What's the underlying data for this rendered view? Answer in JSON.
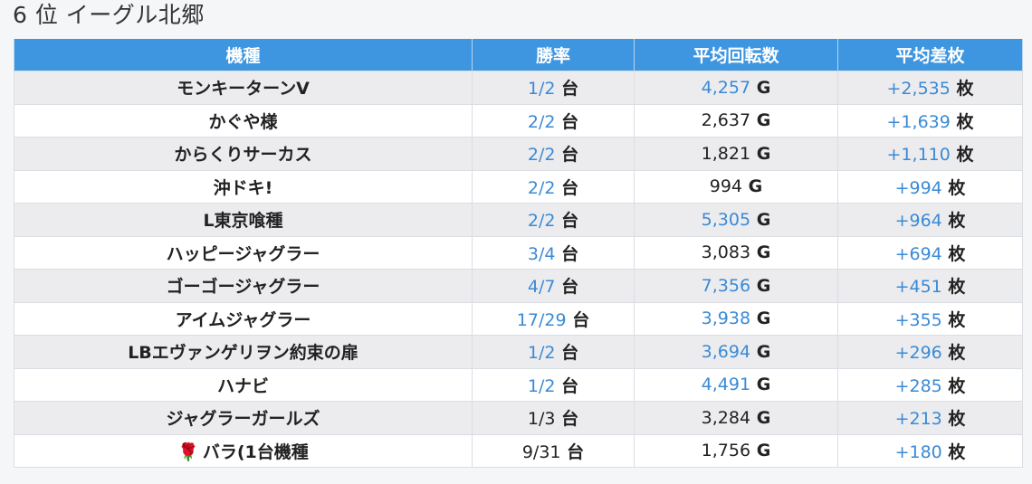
{
  "page": {
    "title": "6 位 イーグル北郷"
  },
  "table": {
    "headers": {
      "model": "機種",
      "win_rate": "勝率",
      "avg_rotation": "平均回転数",
      "avg_diff": "平均差枚"
    },
    "units": {
      "machines": "台",
      "games": "G",
      "medals": "枚"
    },
    "colors": {
      "header_bg": "#3f96e0",
      "link": "#3a8ad6",
      "stripe": "#ececef"
    },
    "rows": [
      {
        "model": "モンキーターンV",
        "win_rate": "1/2",
        "win_link": true,
        "rotation": "4,257",
        "rot_link": true,
        "diff": "+2,535",
        "diff_link": true
      },
      {
        "model": "かぐや様",
        "win_rate": "2/2",
        "win_link": true,
        "rotation": "2,637",
        "rot_link": false,
        "diff": "+1,639",
        "diff_link": true
      },
      {
        "model": "からくりサーカス",
        "win_rate": "2/2",
        "win_link": true,
        "rotation": "1,821",
        "rot_link": false,
        "diff": "+1,110",
        "diff_link": true
      },
      {
        "model": "沖ドキ!",
        "win_rate": "2/2",
        "win_link": true,
        "rotation": "994",
        "rot_link": false,
        "diff": "+994",
        "diff_link": true
      },
      {
        "model": "L東京喰種",
        "win_rate": "2/2",
        "win_link": true,
        "rotation": "5,305",
        "rot_link": true,
        "diff": "+964",
        "diff_link": true
      },
      {
        "model": "ハッピージャグラー",
        "win_rate": "3/4",
        "win_link": true,
        "rotation": "3,083",
        "rot_link": false,
        "diff": "+694",
        "diff_link": true
      },
      {
        "model": "ゴーゴージャグラー",
        "win_rate": "4/7",
        "win_link": true,
        "rotation": "7,356",
        "rot_link": true,
        "diff": "+451",
        "diff_link": true
      },
      {
        "model": "アイムジャグラー",
        "win_rate": "17/29",
        "win_link": true,
        "rotation": "3,938",
        "rot_link": true,
        "diff": "+355",
        "diff_link": true
      },
      {
        "model": "LBエヴァンゲリヲン約束の扉",
        "win_rate": "1/2",
        "win_link": true,
        "rotation": "3,694",
        "rot_link": true,
        "diff": "+296",
        "diff_link": true
      },
      {
        "model": "ハナビ",
        "win_rate": "1/2",
        "win_link": true,
        "rotation": "4,491",
        "rot_link": true,
        "diff": "+285",
        "diff_link": true
      },
      {
        "model": "ジャグラーガールズ",
        "win_rate": "1/3",
        "win_link": false,
        "rotation": "3,284",
        "rot_link": false,
        "diff": "+213",
        "diff_link": true
      },
      {
        "model": "バラ(1台機種",
        "model_icon": "rose-icon",
        "win_rate": "9/31",
        "win_link": false,
        "rotation": "1,756",
        "rot_link": false,
        "diff": "+180",
        "diff_link": true
      }
    ]
  }
}
